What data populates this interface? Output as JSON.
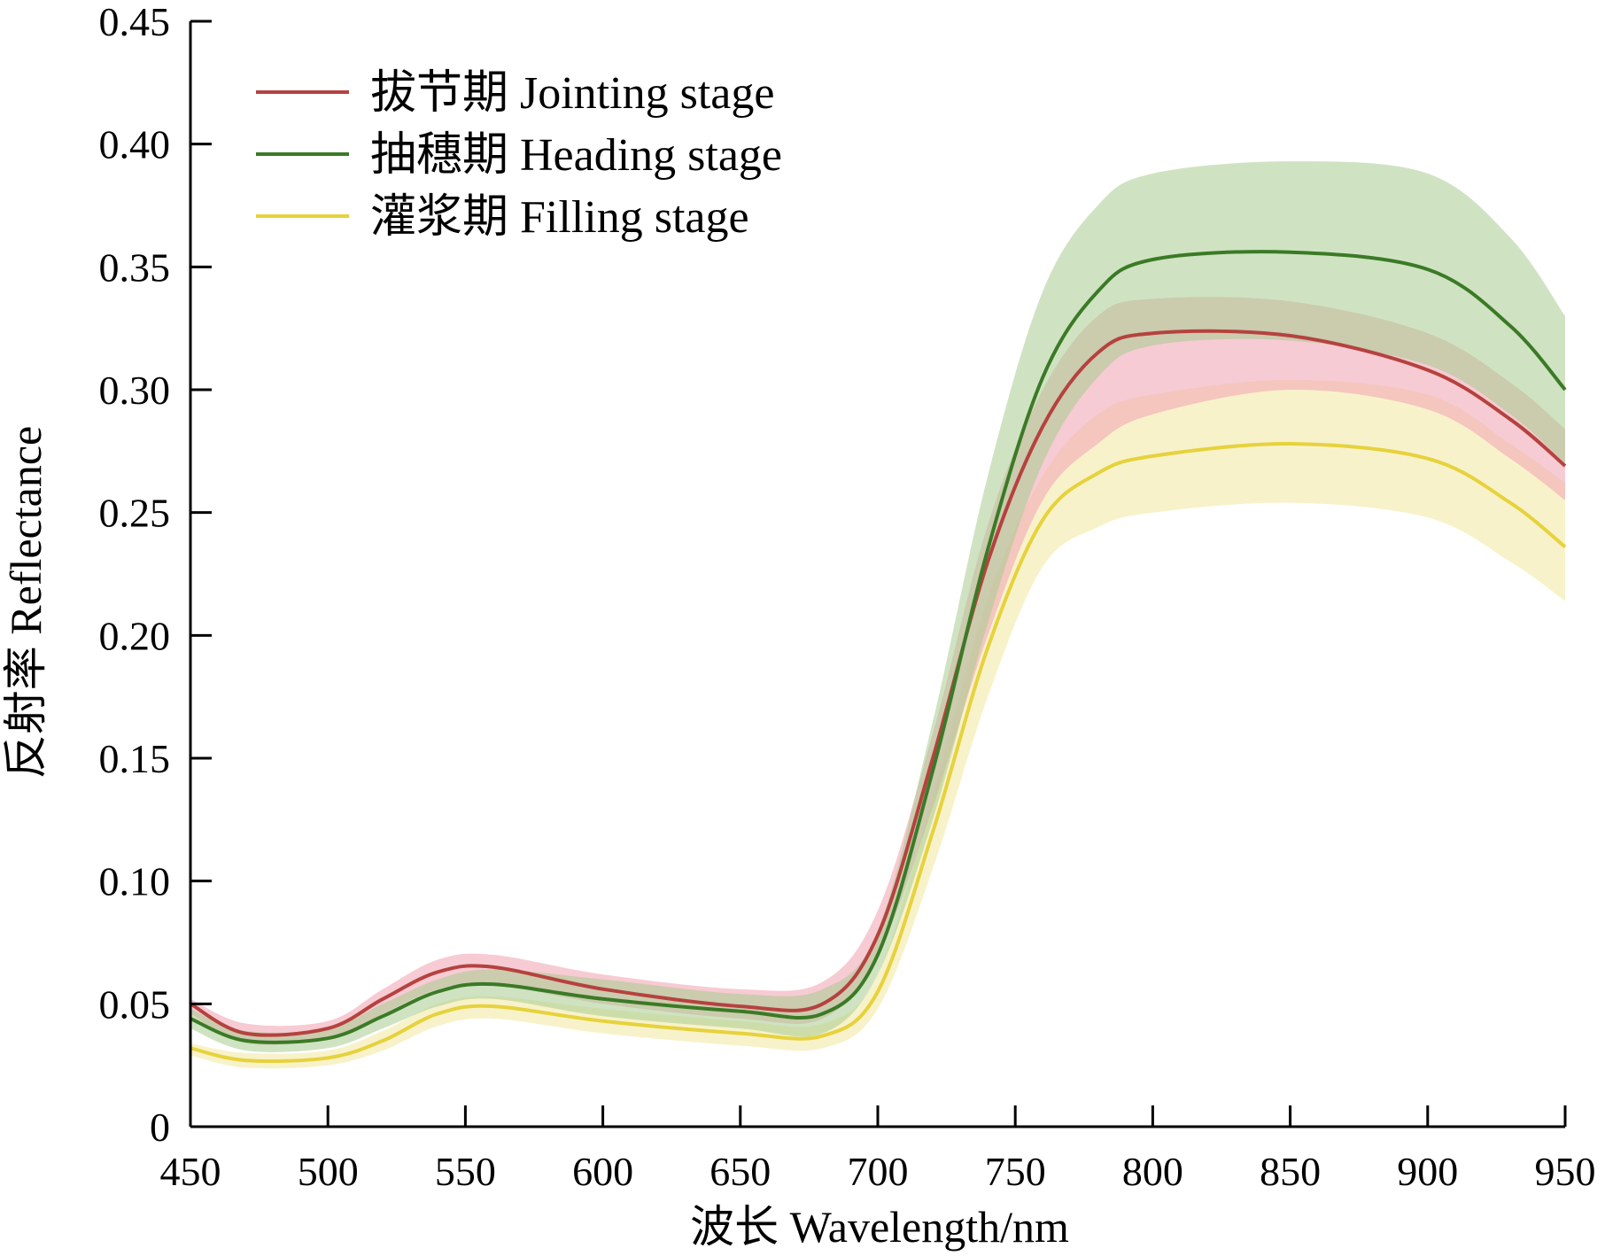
{
  "chart_data": {
    "type": "line",
    "xlabel": "波长 Wavelength/nm",
    "ylabel": "反射率 Reflectance",
    "xlim": [
      450,
      950
    ],
    "ylim": [
      0,
      0.45
    ],
    "x_ticks": [
      "450",
      "500",
      "550",
      "600",
      "650",
      "700",
      "750",
      "800",
      "850",
      "900",
      "950"
    ],
    "y_ticks": [
      "0",
      "0.05",
      "0.10",
      "0.15",
      "0.20",
      "0.25",
      "0.30",
      "0.35",
      "0.40",
      "0.45"
    ],
    "grid": false,
    "legend_position": "top-left",
    "x": [
      450,
      470,
      500,
      520,
      540,
      560,
      600,
      650,
      680,
      700,
      720,
      740,
      760,
      780,
      800,
      850,
      900,
      930,
      950
    ],
    "series": [
      {
        "name": "拔节期 Jointing stage",
        "color": "#b5423f",
        "band_color": "#f2a9b5",
        "values": [
          0.05,
          0.038,
          0.04,
          0.052,
          0.063,
          0.065,
          0.056,
          0.049,
          0.05,
          0.078,
          0.15,
          0.23,
          0.285,
          0.315,
          0.323,
          0.322,
          0.308,
          0.288,
          0.269
        ],
        "upper": [
          0.052,
          0.042,
          0.043,
          0.056,
          0.068,
          0.07,
          0.062,
          0.056,
          0.059,
          0.088,
          0.16,
          0.245,
          0.3,
          0.33,
          0.337,
          0.336,
          0.323,
          0.303,
          0.284
        ],
        "lower": [
          0.046,
          0.034,
          0.036,
          0.046,
          0.056,
          0.058,
          0.05,
          0.044,
          0.044,
          0.07,
          0.13,
          0.2,
          0.255,
          0.278,
          0.29,
          0.3,
          0.292,
          0.272,
          0.255
        ]
      },
      {
        "name": "抽穗期 Heading stage",
        "color": "#3b7a26",
        "band_color": "#a8cc90",
        "values": [
          0.044,
          0.035,
          0.036,
          0.045,
          0.055,
          0.058,
          0.052,
          0.047,
          0.046,
          0.07,
          0.145,
          0.235,
          0.305,
          0.34,
          0.353,
          0.356,
          0.349,
          0.326,
          0.3
        ],
        "upper": [
          0.048,
          0.039,
          0.04,
          0.05,
          0.06,
          0.064,
          0.06,
          0.054,
          0.056,
          0.08,
          0.165,
          0.265,
          0.34,
          0.375,
          0.388,
          0.393,
          0.388,
          0.362,
          0.33
        ],
        "lower": [
          0.04,
          0.031,
          0.032,
          0.04,
          0.049,
          0.052,
          0.045,
          0.04,
          0.038,
          0.062,
          0.125,
          0.205,
          0.27,
          0.305,
          0.318,
          0.32,
          0.31,
          0.29,
          0.27
        ]
      },
      {
        "name": "灌浆期 Filling stage",
        "color": "#e6d23c",
        "band_color": "#f3e9a6",
        "values": [
          0.032,
          0.027,
          0.028,
          0.035,
          0.046,
          0.049,
          0.043,
          0.038,
          0.037,
          0.055,
          0.12,
          0.195,
          0.247,
          0.266,
          0.273,
          0.278,
          0.272,
          0.254,
          0.236
        ],
        "upper": [
          0.034,
          0.03,
          0.031,
          0.039,
          0.05,
          0.053,
          0.048,
          0.043,
          0.042,
          0.062,
          0.135,
          0.215,
          0.265,
          0.29,
          0.298,
          0.304,
          0.298,
          0.278,
          0.262
        ],
        "lower": [
          0.029,
          0.024,
          0.025,
          0.031,
          0.041,
          0.044,
          0.038,
          0.033,
          0.032,
          0.048,
          0.105,
          0.175,
          0.228,
          0.244,
          0.25,
          0.254,
          0.248,
          0.23,
          0.214
        ]
      }
    ]
  }
}
